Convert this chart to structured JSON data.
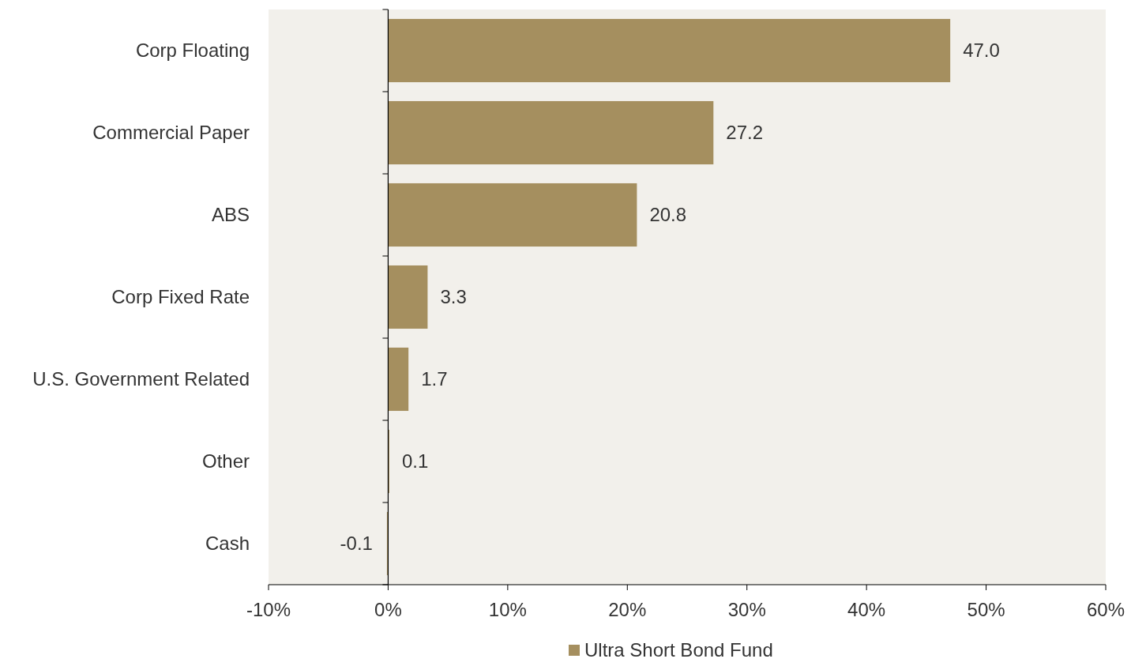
{
  "chart_data": {
    "type": "bar",
    "orientation": "horizontal",
    "categories": [
      "Corp Floating",
      "Commercial Paper",
      "ABS",
      "Corp Fixed Rate",
      "U.S. Government Related",
      "Other",
      "Cash"
    ],
    "series": [
      {
        "name": "Ultra Short Bond Fund",
        "color": "#a58f5f",
        "values": [
          47.0,
          27.2,
          20.8,
          3.3,
          1.7,
          0.1,
          -0.1
        ],
        "value_labels": [
          "47.0",
          "27.2",
          "20.8",
          "3.3",
          "1.7",
          "0.1",
          "-0.1"
        ]
      }
    ],
    "xlim": [
      -10,
      60
    ],
    "xticks": [
      {
        "value": -10,
        "label": "-10%"
      },
      {
        "value": 0,
        "label": "0%"
      },
      {
        "value": 10,
        "label": "10%"
      },
      {
        "value": 20,
        "label": "20%"
      },
      {
        "value": 30,
        "label": "30%"
      },
      {
        "value": 40,
        "label": "40%"
      },
      {
        "value": 50,
        "label": "50%"
      },
      {
        "value": 60,
        "label": "60%"
      }
    ],
    "legend": "bottom"
  }
}
